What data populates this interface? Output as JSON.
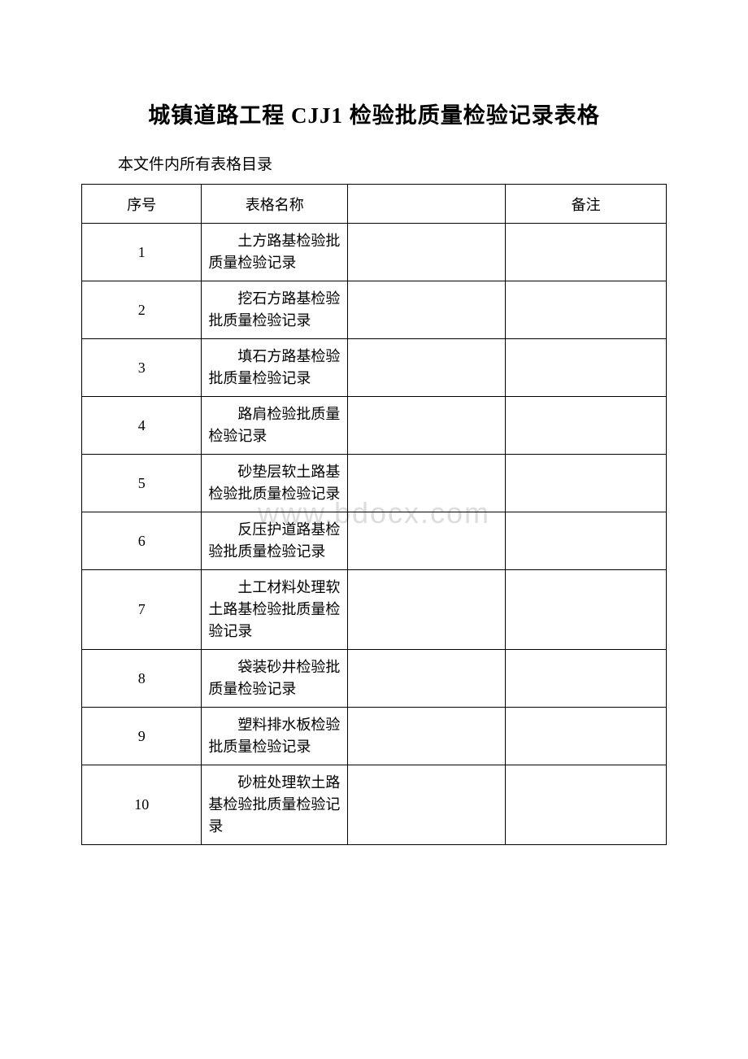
{
  "document": {
    "title": "城镇道路工程 CJJ1 检验批质量检验记录表格",
    "subtitle": "本文件内所有表格目录",
    "watermark": "www.bdocx.com"
  },
  "table": {
    "headers": {
      "seq": "序号",
      "name": "表格名称",
      "empty": "",
      "remark": "备注"
    },
    "rows": [
      {
        "seq": "1",
        "name": "土方路基检验批质量检验记录",
        "remark": ""
      },
      {
        "seq": "2",
        "name": "挖石方路基检验批质量检验记录",
        "remark": ""
      },
      {
        "seq": "3",
        "name": "填石方路基检验批质量检验记录",
        "remark": ""
      },
      {
        "seq": "4",
        "name": "路肩检验批质量检验记录",
        "remark": ""
      },
      {
        "seq": "5",
        "name": "砂垫层软土路基检验批质量检验记录",
        "remark": ""
      },
      {
        "seq": "6",
        "name": "反压护道路基检验批质量检验记录",
        "remark": ""
      },
      {
        "seq": "7",
        "name": "土工材料处理软土路基检验批质量检验记录",
        "remark": ""
      },
      {
        "seq": "8",
        "name": "袋装砂井检验批质量检验记录",
        "remark": ""
      },
      {
        "seq": "9",
        "name": "塑料排水板检验批质量检验记录",
        "remark": ""
      },
      {
        "seq": "10",
        "name": "砂桩处理软土路基检验批质量检验记录",
        "remark": ""
      }
    ],
    "column_widths": [
      "20.5%",
      "25%",
      "27%",
      "27.5%"
    ],
    "border_color": "#000000",
    "font_size_header": 18,
    "font_size_cell": 18,
    "title_font_size": 27,
    "subtitle_font_size": 19,
    "background_color": "#ffffff",
    "text_color": "#000000",
    "watermark_color": "#dddddd"
  }
}
